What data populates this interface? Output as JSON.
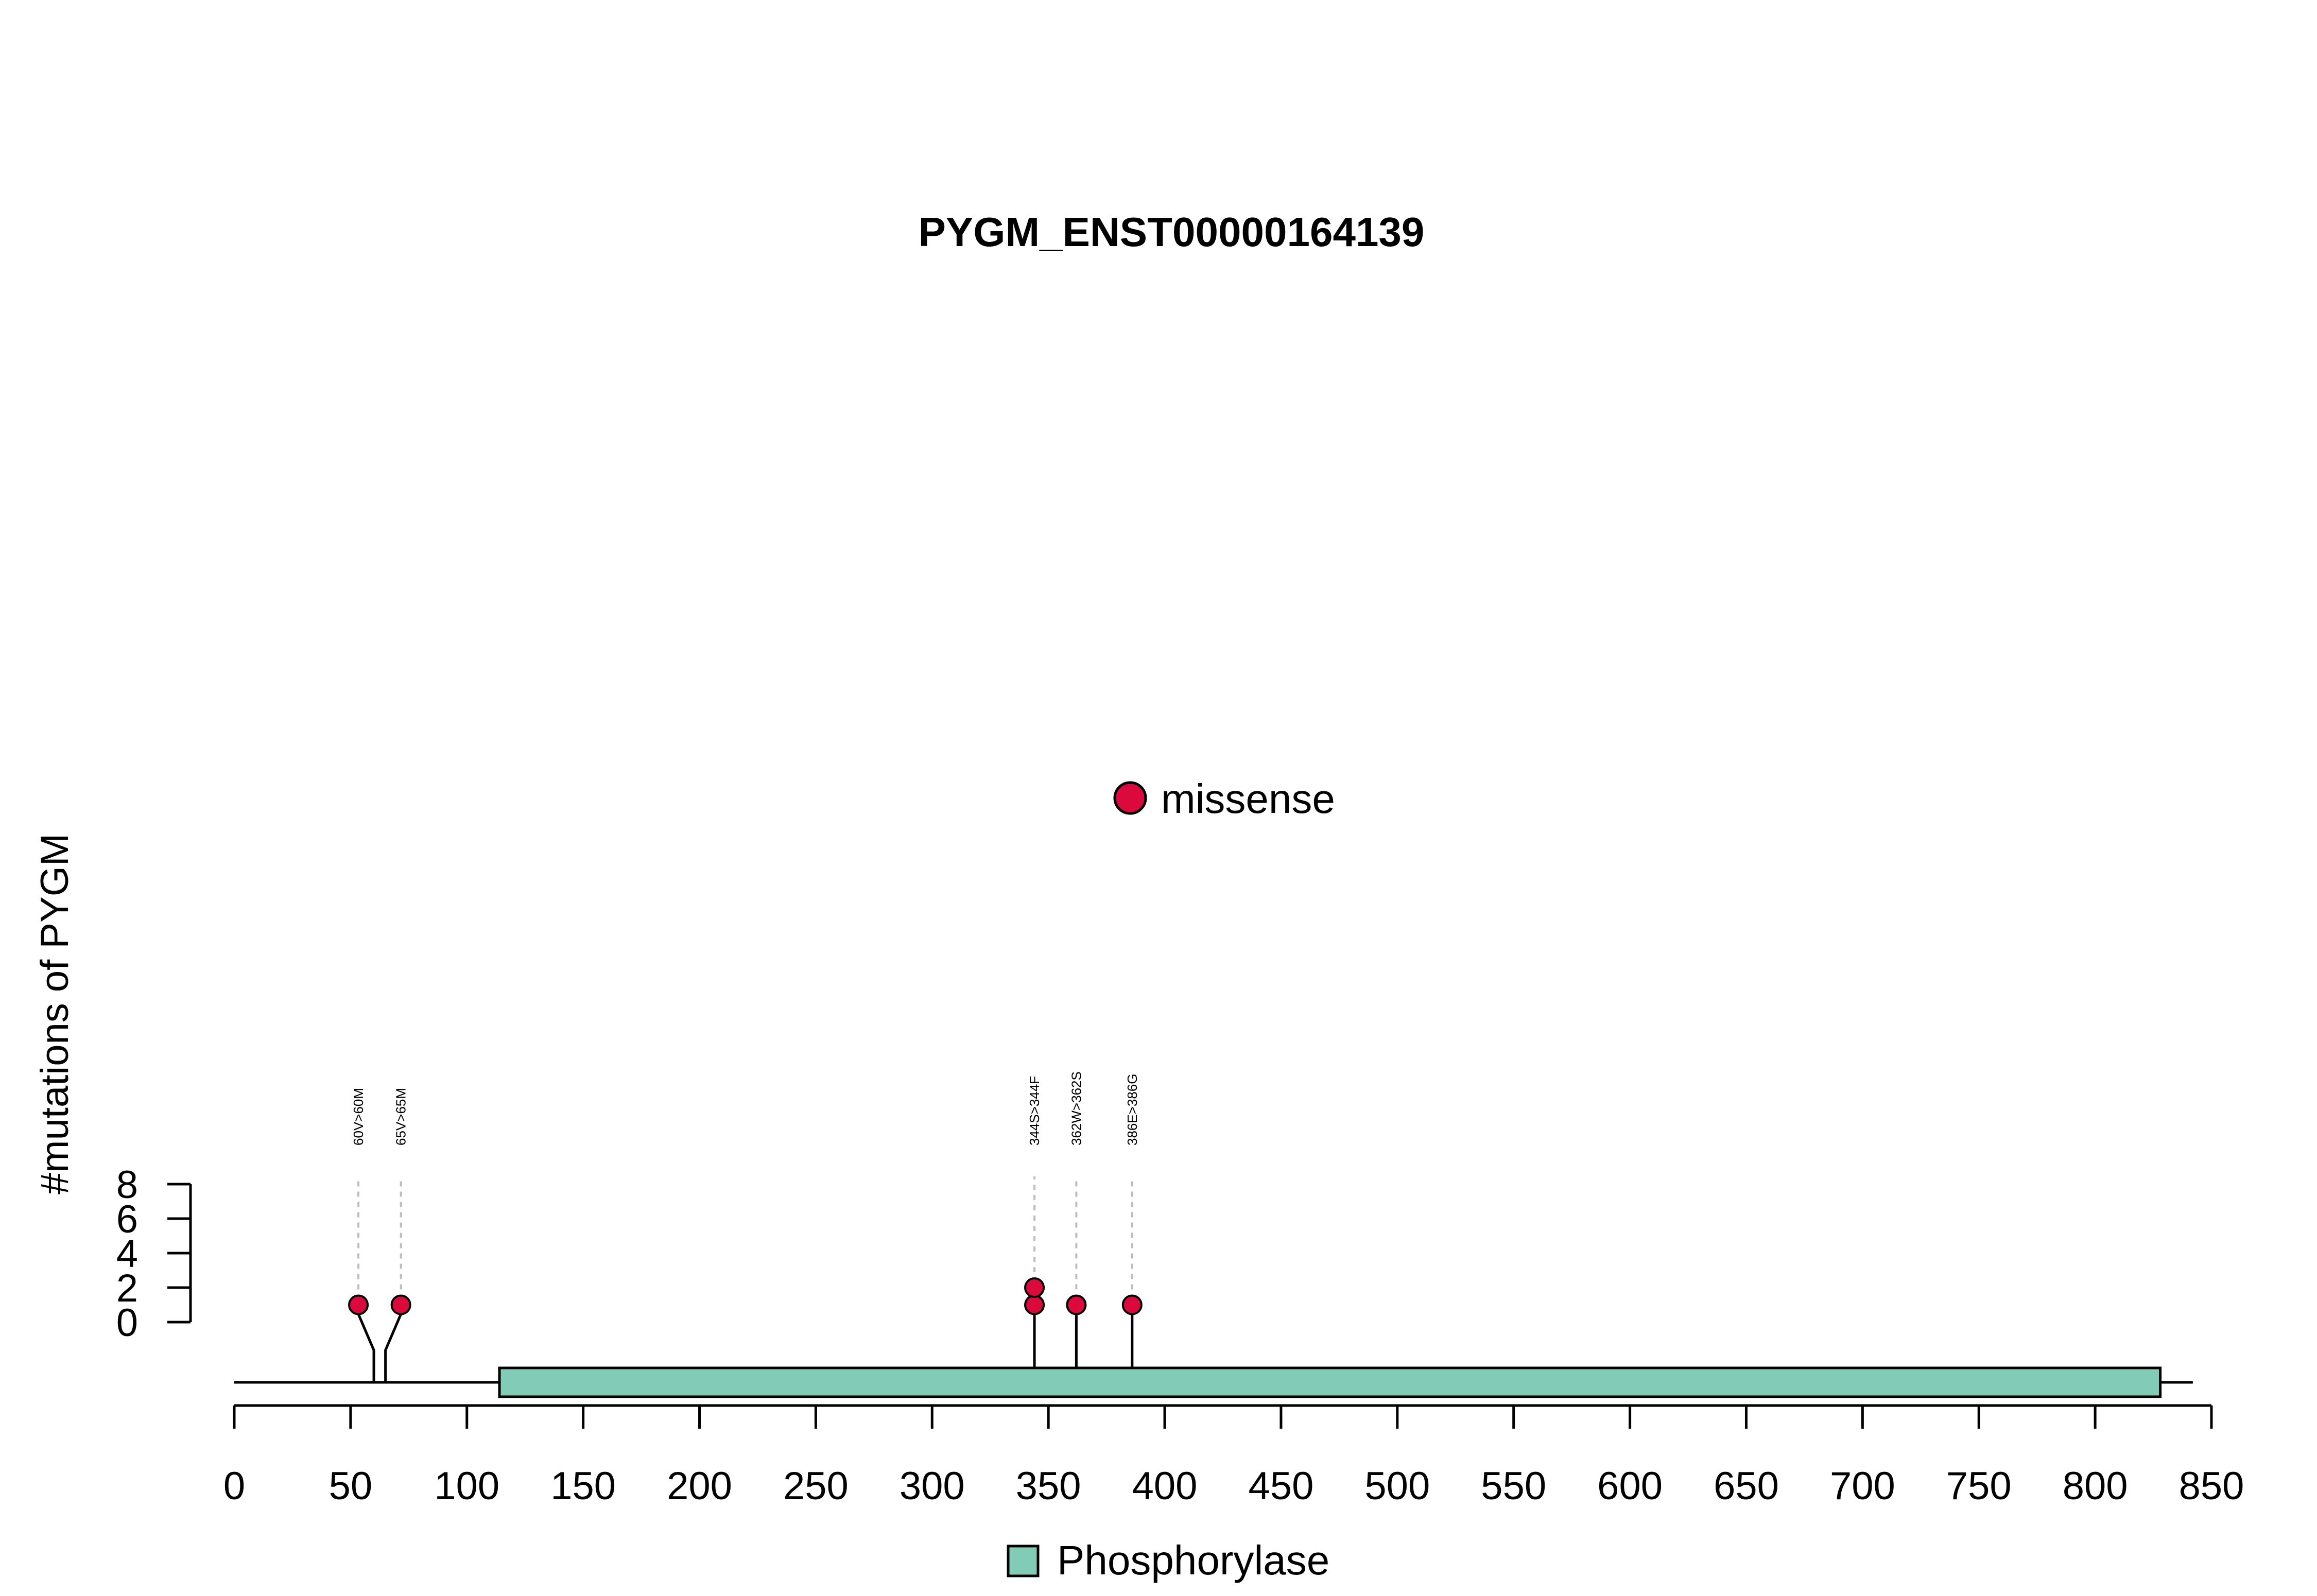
{
  "chart_data": {
    "type": "lollipop",
    "title": "PYGM_ENST00000164139",
    "ylabel": "#mutations of PYGM",
    "xlim": [
      0,
      850
    ],
    "x_ticks": [
      "0",
      "50",
      "100",
      "150",
      "200",
      "250",
      "300",
      "350",
      "400",
      "450",
      "500",
      "550",
      "600",
      "650",
      "700",
      "750",
      "800",
      "850"
    ],
    "ylim": [
      0,
      8
    ],
    "y_ticks": [
      "0",
      "2",
      "4",
      "6",
      "8"
    ],
    "protein_length": 842,
    "domains": [
      {
        "name": "Phosphorylase",
        "start": 114,
        "end": 828,
        "color": "#82CCB7"
      }
    ],
    "mutation_legend": [
      {
        "label": "missense",
        "color": "#DC0A3C"
      }
    ],
    "domain_legend": [
      {
        "label": "Phosphorylase",
        "color": "#82CCB7"
      }
    ],
    "mutations": [
      {
        "label": "60V>60M",
        "position": 60,
        "count": 1,
        "type": "missense"
      },
      {
        "label": "65V>65M",
        "position": 65,
        "count": 1,
        "type": "missense"
      },
      {
        "label": "344S>344F",
        "position": 344,
        "count": 2,
        "type": "missense"
      },
      {
        "label": "362W>362S",
        "position": 362,
        "count": 1,
        "type": "missense"
      },
      {
        "label": "386E>386G",
        "position": 386,
        "count": 1,
        "type": "missense"
      }
    ]
  }
}
